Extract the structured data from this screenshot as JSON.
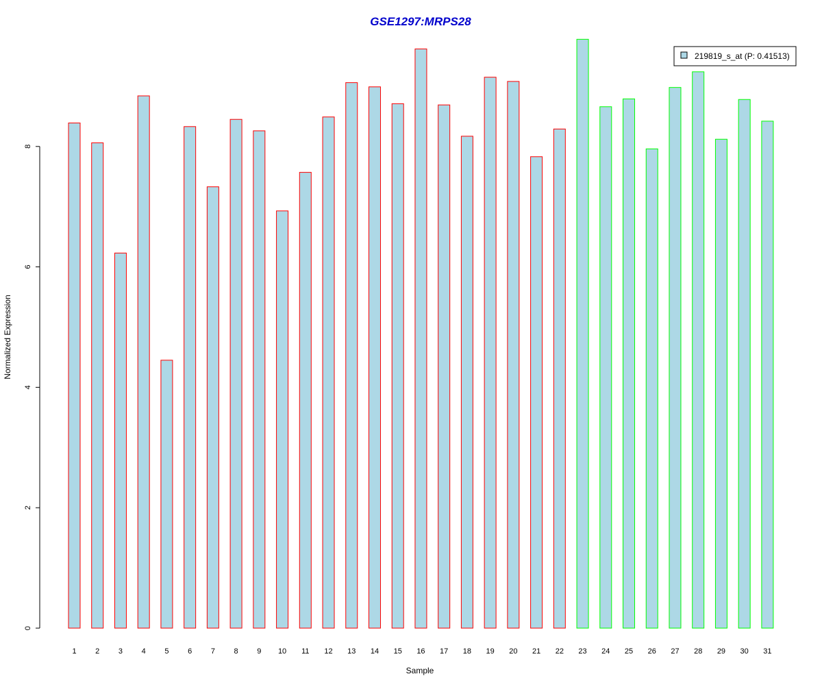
{
  "chart_data": {
    "type": "bar",
    "title": "GSE1297:MRPS28",
    "xlabel": "Sample",
    "ylabel": "Normalized Expression",
    "categories": [
      "1",
      "2",
      "3",
      "4",
      "5",
      "6",
      "7",
      "8",
      "9",
      "10",
      "11",
      "12",
      "13",
      "14",
      "15",
      "16",
      "17",
      "18",
      "19",
      "20",
      "21",
      "22",
      "23",
      "24",
      "25",
      "26",
      "27",
      "28",
      "29",
      "30",
      "31"
    ],
    "values": [
      8.39,
      8.06,
      6.23,
      8.84,
      4.45,
      8.33,
      7.33,
      8.45,
      8.26,
      6.93,
      7.57,
      8.49,
      9.06,
      8.99,
      8.71,
      9.62,
      8.69,
      8.17,
      9.15,
      9.08,
      7.83,
      8.29,
      9.78,
      8.66,
      8.79,
      7.96,
      8.98,
      9.24,
      8.12,
      8.78,
      8.42
    ],
    "ylim": [
      0,
      10
    ],
    "yticks": [
      0,
      2,
      4,
      6,
      8
    ],
    "fill_color": "#add8e6",
    "groups": [
      {
        "from": 1,
        "to": 22,
        "border_color": "#ff0000"
      },
      {
        "from": 23,
        "to": 31,
        "border_color": "#00ff00"
      }
    ],
    "legend": {
      "label": "219819_s_at (P: 0.41513)",
      "position": "top-right",
      "swatch_color": "#add8e6"
    },
    "grid": false
  }
}
